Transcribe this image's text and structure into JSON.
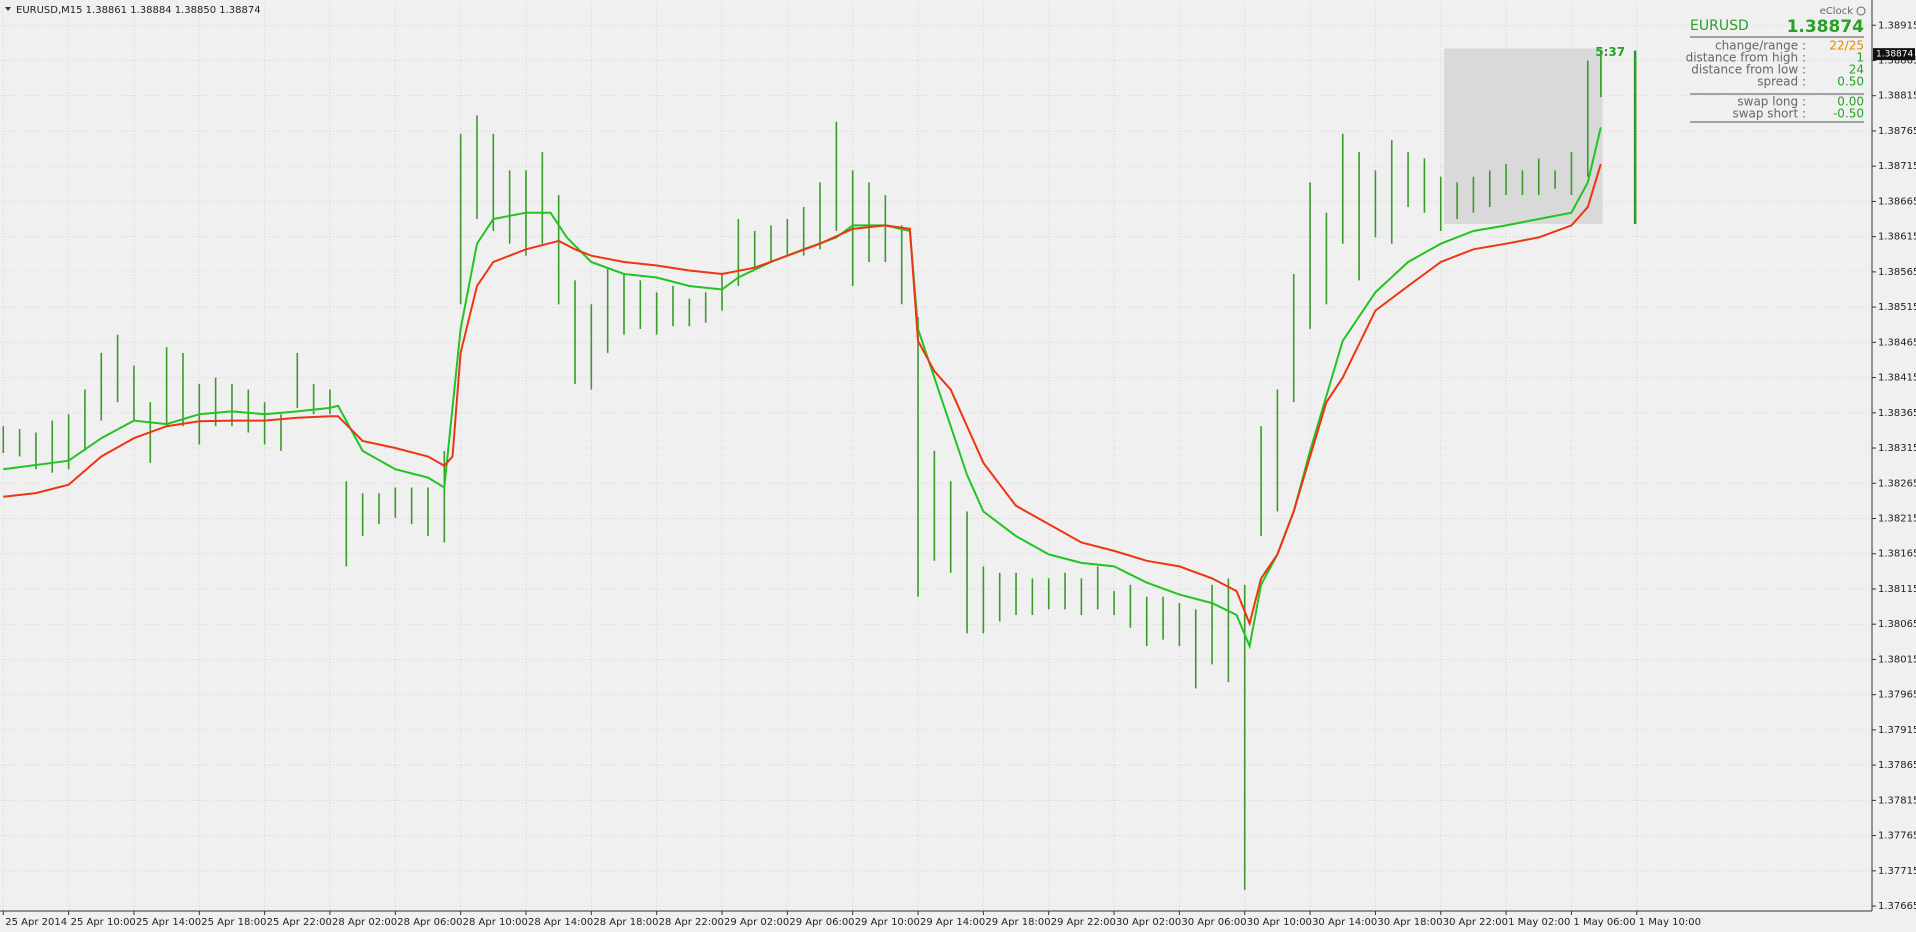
{
  "header": "EURUSD,M15  1.38861 1.38884 1.38850 1.38874",
  "chart_data": {
    "type": "ohlc",
    "xlim": [
      -0.2,
      114.4
    ],
    "ylim": [
      1.37658,
      1.38948
    ],
    "grid": true,
    "xticks": [
      {
        "value": 0,
        "label": "25 Apr 2014"
      },
      {
        "value": 4,
        "label": "25 Apr 10:00"
      },
      {
        "value": 8,
        "label": "25 Apr 14:00"
      },
      {
        "value": 12,
        "label": "25 Apr 18:00"
      },
      {
        "value": 16,
        "label": "25 Apr 22:00"
      },
      {
        "value": 20,
        "label": "28 Apr 02:00"
      },
      {
        "value": 24,
        "label": "28 Apr 06:00"
      },
      {
        "value": 28,
        "label": "28 Apr 10:00"
      },
      {
        "value": 32,
        "label": "28 Apr 14:00"
      },
      {
        "value": 36,
        "label": "28 Apr 18:00"
      },
      {
        "value": 40,
        "label": "28 Apr 22:00"
      },
      {
        "value": 44,
        "label": "29 Apr 02:00"
      },
      {
        "value": 48,
        "label": "29 Apr 06:00"
      },
      {
        "value": 52,
        "label": "29 Apr 10:00"
      },
      {
        "value": 56,
        "label": "29 Apr 14:00"
      },
      {
        "value": 60,
        "label": "29 Apr 18:00"
      },
      {
        "value": 64,
        "label": "29 Apr 22:00"
      },
      {
        "value": 68,
        "label": "30 Apr 02:00"
      },
      {
        "value": 72,
        "label": "30 Apr 06:00"
      },
      {
        "value": 76,
        "label": "30 Apr 10:00"
      },
      {
        "value": 80,
        "label": "30 Apr 14:00"
      },
      {
        "value": 84,
        "label": "30 Apr 18:00"
      },
      {
        "value": 88,
        "label": "30 Apr 22:00"
      },
      {
        "value": 92,
        "label": "1 May 02:00"
      },
      {
        "value": 96,
        "label": "1 May 06:00"
      },
      {
        "value": 100,
        "label": "1 May 10:00"
      }
    ],
    "yticks": [
      1.37665,
      1.37715,
      1.37765,
      1.37815,
      1.37865,
      1.37915,
      1.37965,
      1.38015,
      1.38065,
      1.38115,
      1.38165,
      1.38215,
      1.38265,
      1.38315,
      1.38365,
      1.38415,
      1.38465,
      1.38515,
      1.38565,
      1.38615,
      1.38665,
      1.38715,
      1.38765,
      1.38815,
      1.38865,
      1.38915
    ],
    "bars": {
      "color": "#3a9a2a",
      "x": [
        0,
        1,
        2,
        3,
        4,
        5,
        6,
        7,
        8,
        9,
        10,
        11,
        12,
        13,
        14,
        15,
        16,
        17,
        18,
        19,
        20,
        21,
        22,
        23,
        24,
        25,
        26,
        27,
        28,
        29,
        30,
        31,
        32,
        33,
        34,
        35,
        36,
        37,
        38,
        39,
        40,
        41,
        42,
        43,
        44,
        45,
        46,
        47,
        48,
        49,
        50,
        51,
        52,
        53,
        54,
        55,
        56,
        57,
        58,
        59,
        60,
        61,
        62,
        63,
        64,
        65,
        66,
        67,
        68,
        69,
        70,
        71,
        72,
        73,
        74,
        75,
        76,
        77,
        78,
        79,
        80,
        81,
        82,
        83,
        84,
        85,
        86,
        87,
        88,
        89,
        90,
        91,
        92,
        93,
        94,
        95,
        96,
        97,
        97.8
      ],
      "high": [
        1.38346,
        1.38342,
        1.38337,
        1.38354,
        1.38363,
        1.38398,
        1.3845,
        1.38476,
        1.38432,
        1.3838,
        1.38458,
        1.3845,
        1.38406,
        1.38415,
        1.38406,
        1.38398,
        1.3838,
        1.38363,
        1.3845,
        1.38406,
        1.38398,
        1.38268,
        1.38251,
        1.38251,
        1.38259,
        1.38259,
        1.38259,
        1.38311,
        1.38761,
        1.38787,
        1.38761,
        1.38709,
        1.38709,
        1.38735,
        1.38674,
        1.38553,
        1.38519,
        1.38571,
        1.38562,
        1.38553,
        1.38536,
        1.38545,
        1.38527,
        1.38536,
        1.38562,
        1.3864,
        1.38623,
        1.38631,
        1.3864,
        1.38657,
        1.38692,
        1.38778,
        1.38709,
        1.38692,
        1.38674,
        1.38631,
        1.38501,
        1.38311,
        1.38268,
        1.38225,
        1.38147,
        1.38138,
        1.38138,
        1.3813,
        1.3813,
        1.38138,
        1.3813,
        1.38147,
        1.38112,
        1.38121,
        1.38104,
        1.38104,
        1.38095,
        1.38086,
        1.38121,
        1.3813,
        1.38121,
        1.38346,
        1.38398,
        1.38562,
        1.38692,
        1.38649,
        1.38761,
        1.38735,
        1.38709,
        1.38752,
        1.38735,
        1.38726,
        1.387,
        1.38692,
        1.387,
        1.38709,
        1.38718,
        1.38709,
        1.38726,
        1.38709,
        1.38735,
        1.38865,
        1.38879
      ],
      "low": [
        1.38308,
        1.38303,
        1.38285,
        1.3828,
        1.38285,
        1.38311,
        1.38354,
        1.3838,
        1.38354,
        1.38294,
        1.38346,
        1.38346,
        1.3832,
        1.38346,
        1.38346,
        1.38337,
        1.3832,
        1.38311,
        1.38372,
        1.38363,
        1.38363,
        1.38147,
        1.3819,
        1.38207,
        1.38216,
        1.38207,
        1.3819,
        1.38181,
        1.38519,
        1.3864,
        1.38623,
        1.38605,
        1.38588,
        1.38605,
        1.38519,
        1.38406,
        1.38398,
        1.3845,
        1.38476,
        1.38484,
        1.38476,
        1.38488,
        1.38488,
        1.38493,
        1.3851,
        1.38545,
        1.38571,
        1.38579,
        1.38588,
        1.38588,
        1.38597,
        1.38623,
        1.38545,
        1.38579,
        1.38579,
        1.38519,
        1.38104,
        1.38155,
        1.38138,
        1.38052,
        1.38052,
        1.38069,
        1.38078,
        1.38078,
        1.38086,
        1.38086,
        1.38078,
        1.38086,
        1.38078,
        1.3806,
        1.38034,
        1.38043,
        1.38034,
        1.37974,
        1.38008,
        1.37983,
        1.37688,
        1.3819,
        1.38225,
        1.3838,
        1.38484,
        1.38519,
        1.38605,
        1.38553,
        1.38614,
        1.38605,
        1.38657,
        1.38649,
        1.38623,
        1.3864,
        1.38649,
        1.38657,
        1.38674,
        1.38674,
        1.38674,
        1.38683,
        1.38674,
        1.387,
        1.38813
      ]
    },
    "series": [
      {
        "color": "#22c422",
        "x": [
          0,
          4,
          6,
          8,
          10,
          12,
          14,
          16,
          18,
          20,
          20.5,
          22,
          24,
          26,
          27,
          28,
          29,
          30,
          32,
          33.5,
          34.5,
          36,
          38,
          40,
          42,
          44,
          45,
          47,
          49,
          51,
          52,
          54,
          55.5,
          56,
          58,
          59,
          60,
          62,
          64,
          66,
          68,
          70,
          72,
          74,
          75.5,
          76.3,
          77,
          78,
          79,
          80,
          82,
          84,
          86,
          88,
          90,
          92,
          94,
          96,
          97,
          97.8
        ],
        "values": [
          1.38285,
          1.38297,
          1.38329,
          1.38354,
          1.38349,
          1.38363,
          1.38367,
          1.38363,
          1.38367,
          1.38372,
          1.38375,
          1.38311,
          1.38285,
          1.38273,
          1.38259,
          1.38484,
          1.38605,
          1.3864,
          1.38649,
          1.38649,
          1.38614,
          1.38579,
          1.38562,
          1.38557,
          1.38545,
          1.3854,
          1.38557,
          1.38579,
          1.38597,
          1.38614,
          1.38631,
          1.38631,
          1.38623,
          1.38484,
          1.38346,
          1.38277,
          1.38225,
          1.3819,
          1.38164,
          1.38152,
          1.38147,
          1.38124,
          1.38107,
          1.38095,
          1.38078,
          1.38034,
          1.38121,
          1.38164,
          1.38225,
          1.38311,
          1.38467,
          1.38536,
          1.38579,
          1.38605,
          1.38623,
          1.38631,
          1.3864,
          1.38649,
          1.38692,
          1.3877
        ]
      },
      {
        "color": "#ee3511",
        "x": [
          0,
          2,
          4,
          6,
          8,
          10,
          12,
          14,
          16,
          18,
          20,
          20.5,
          22,
          24,
          26,
          27,
          27.5,
          28,
          29,
          30,
          32,
          34,
          35,
          36,
          38,
          40,
          42,
          44,
          46,
          48,
          50,
          52,
          54,
          55.5,
          56,
          57,
          58,
          59,
          60,
          62,
          64,
          66,
          68,
          70,
          72,
          74,
          75.5,
          76.3,
          77,
          78,
          79,
          80,
          81,
          82,
          84,
          86,
          88,
          90,
          92,
          94,
          96,
          97,
          97.8
        ],
        "values": [
          1.38246,
          1.38251,
          1.38263,
          1.38303,
          1.38329,
          1.38346,
          1.38353,
          1.38354,
          1.38354,
          1.38358,
          1.3836,
          1.3836,
          1.38325,
          1.38315,
          1.38303,
          1.3829,
          1.38303,
          1.3845,
          1.38545,
          1.38579,
          1.38597,
          1.38609,
          1.38597,
          1.38588,
          1.38579,
          1.38574,
          1.38567,
          1.38562,
          1.38571,
          1.38588,
          1.38605,
          1.38626,
          1.38631,
          1.38626,
          1.38467,
          1.38424,
          1.38398,
          1.38346,
          1.38294,
          1.38233,
          1.38207,
          1.38181,
          1.38169,
          1.38155,
          1.38147,
          1.3813,
          1.38112,
          1.38066,
          1.3813,
          1.38164,
          1.38225,
          1.38303,
          1.3838,
          1.38415,
          1.3851,
          1.38545,
          1.38579,
          1.38597,
          1.38605,
          1.38614,
          1.38631,
          1.38657,
          1.38718
        ]
      }
    ],
    "range_box": {
      "x": [
        88.2,
        97.9
      ],
      "y": [
        1.38633,
        1.38882
      ],
      "color": "#d9d9d9"
    },
    "range_bar": {
      "x": 99.9,
      "high": 1.38879,
      "low": 1.38633,
      "color": "#2a9a2a",
      "label": "5:37"
    },
    "current_price": 1.38874
  },
  "panel": {
    "title": "eClock",
    "symbol": "EURUSD",
    "rows": [
      [
        "change/range :",
        "22/25"
      ],
      [
        "distance from high :",
        "1"
      ],
      [
        "distance from low :",
        "24"
      ],
      [
        "spread :",
        "0.50"
      ]
    ],
    "swaps": [
      [
        "swap long :",
        "0.00"
      ],
      [
        "swap short :",
        "-0.50"
      ]
    ]
  }
}
